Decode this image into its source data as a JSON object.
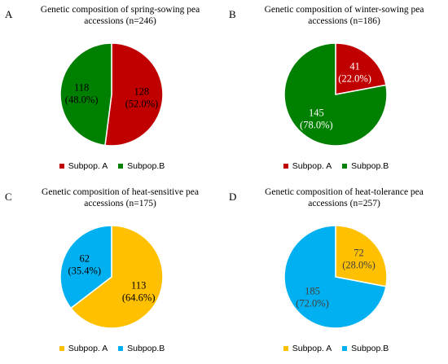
{
  "chart_data": [
    {
      "type": "pie",
      "panel_letter": "A",
      "title": "Genetic composition of spring-sowing pea accessions (n=246)",
      "title_lines": [
        "Genetic composition of spring-sowing pea",
        "accessions (n=246)"
      ],
      "slices": [
        {
          "name": "Subpop. A",
          "value": 128,
          "label_value": "128",
          "label_pct": "(52.0%)",
          "color": "#C00000",
          "label_color": "#000000"
        },
        {
          "name": "Subpop.B",
          "value": 118,
          "label_value": "118",
          "label_pct": "(48.0%)",
          "color": "#008000",
          "label_color": "#000000"
        }
      ]
    },
    {
      "type": "pie",
      "panel_letter": "B",
      "title": "Genetic composition of winter-sowing pea accessions (n=186)",
      "title_lines": [
        "Genetic composition of winter-sowing pea",
        "accessions (n=186)"
      ],
      "slices": [
        {
          "name": "Subpop. A",
          "value": 41,
          "label_value": "41",
          "label_pct": "(22.0%)",
          "color": "#C00000",
          "label_color": "#FFFFFF"
        },
        {
          "name": "Subpop.B",
          "value": 145,
          "label_value": "145",
          "label_pct": "(78.0%)",
          "color": "#008000",
          "label_color": "#FFFFFF"
        }
      ]
    },
    {
      "type": "pie",
      "panel_letter": "C",
      "title": "Genetic composition of heat-sensitive pea accessions (n=175)",
      "title_lines": [
        "Genetic composition of heat-sensitive pea",
        "accessions (n=175)"
      ],
      "slices": [
        {
          "name": "Subpop. A",
          "value": 113,
          "label_value": "113",
          "label_pct": "(64.6%)",
          "color": "#FFC000",
          "label_color": "#000000"
        },
        {
          "name": "Subpop.B",
          "value": 62,
          "label_value": "62",
          "label_pct": "(35.4%)",
          "color": "#00B0F0",
          "label_color": "#000000"
        }
      ]
    },
    {
      "type": "pie",
      "panel_letter": "D",
      "title": "Genetic composition of heat-tolerance pea accessions (n=257)",
      "title_lines": [
        "Genetic composition of heat-tolerance pea",
        "accessions (n=257)"
      ],
      "slices": [
        {
          "name": "Subpop. A",
          "value": 72,
          "label_value": "72",
          "label_pct": "(28.0%)",
          "color": "#FFC000",
          "label_color": "#404040"
        },
        {
          "name": "Subpop.B",
          "value": 185,
          "label_value": "185",
          "label_pct": "(72.0%)",
          "color": "#00B0F0",
          "label_color": "#404040"
        }
      ]
    }
  ]
}
